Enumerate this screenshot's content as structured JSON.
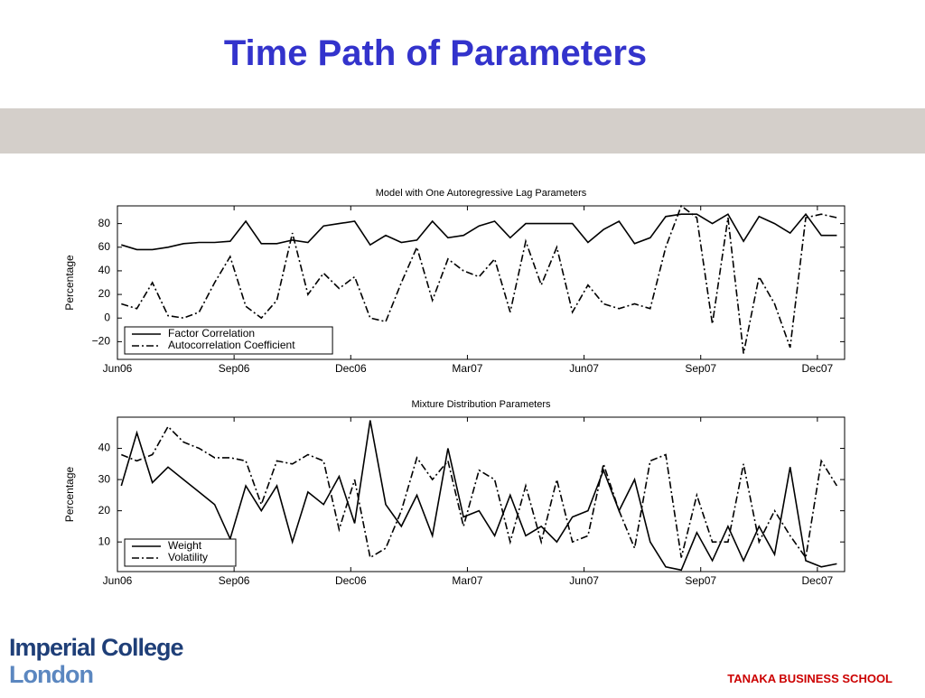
{
  "slide": {
    "title": "Time Path of Parameters",
    "logo_line1": "Imperial College",
    "logo_line2": "London",
    "footer": "TANAKA BUSINESS SCHOOL"
  },
  "chart_data": [
    {
      "type": "line",
      "title": "Model with One Autoregressive Lag Parameters",
      "y_label": "Percentage",
      "x": [
        0.1,
        0.5,
        0.9,
        1.3,
        1.7,
        2.1,
        2.5,
        2.9,
        3.3,
        3.7,
        4.1,
        4.5,
        4.9,
        5.3,
        5.7,
        6.1,
        6.5,
        6.9,
        7.3,
        7.7,
        8.1,
        8.5,
        8.9,
        9.3,
        9.7,
        10.1,
        10.5,
        10.9,
        11.3,
        11.7,
        12.1,
        12.5,
        12.9,
        13.3,
        13.7,
        14.1,
        14.5,
        14.9,
        15.3,
        15.7,
        16.1,
        16.5,
        16.9,
        17.3,
        17.7,
        18.1,
        18.5
      ],
      "series": [
        {
          "name": "Factor Correlation",
          "color": "#000000",
          "dash": "solid",
          "values": [
            62,
            58,
            58,
            60,
            63,
            64,
            64,
            65,
            82,
            63,
            63,
            66,
            64,
            78,
            80,
            82,
            62,
            70,
            64,
            66,
            82,
            68,
            70,
            78,
            82,
            68,
            80,
            80,
            80,
            80,
            64,
            75,
            82,
            63,
            68,
            86,
            88,
            88,
            80,
            88,
            65,
            86,
            80,
            72,
            88,
            70,
            70
          ]
        },
        {
          "name": "Autocorrelation Coefficient",
          "color": "#000000",
          "dash": "dashdot",
          "values": [
            12,
            8,
            30,
            2,
            0,
            5,
            30,
            52,
            10,
            0,
            15,
            72,
            20,
            38,
            25,
            35,
            0,
            -3,
            30,
            60,
            15,
            50,
            40,
            35,
            50,
            5,
            65,
            28,
            60,
            5,
            28,
            12,
            8,
            12,
            8,
            60,
            95,
            85,
            -5,
            85,
            -30,
            35,
            12,
            -25,
            85,
            88,
            85
          ]
        }
      ],
      "xlim": [
        0,
        18.7
      ],
      "ylim": [
        -35,
        95
      ],
      "xticks": [
        {
          "value": 0,
          "label": "Jun06"
        },
        {
          "value": 3,
          "label": "Sep06"
        },
        {
          "value": 6,
          "label": "Dec06"
        },
        {
          "value": 9,
          "label": "Mar07"
        },
        {
          "value": 12,
          "label": "Jun07"
        },
        {
          "value": 15,
          "label": "Sep07"
        },
        {
          "value": 18,
          "label": "Dec07"
        }
      ],
      "yticks": [
        {
          "value": -20,
          "label": "−20"
        },
        0,
        20,
        40,
        60,
        80
      ],
      "legend": "lower left"
    },
    {
      "type": "line",
      "title": "Mixture Distribution Parameters",
      "y_label": "Percentage",
      "x": [
        0.1,
        0.5,
        0.9,
        1.3,
        1.7,
        2.1,
        2.5,
        2.9,
        3.3,
        3.7,
        4.1,
        4.5,
        4.9,
        5.3,
        5.7,
        6.1,
        6.5,
        6.9,
        7.3,
        7.7,
        8.1,
        8.5,
        8.9,
        9.3,
        9.7,
        10.1,
        10.5,
        10.9,
        11.3,
        11.7,
        12.1,
        12.5,
        12.9,
        13.3,
        13.7,
        14.1,
        14.5,
        14.9,
        15.3,
        15.7,
        16.1,
        16.5,
        16.9,
        17.3,
        17.7,
        18.1,
        18.5
      ],
      "series": [
        {
          "name": "Weight",
          "color": "#000000",
          "dash": "solid",
          "values": [
            28,
            45,
            29,
            34,
            30,
            26,
            22,
            11,
            28,
            20,
            28,
            10,
            26,
            22,
            31,
            16,
            49,
            22,
            15,
            25,
            12,
            40,
            18,
            20,
            12,
            25,
            12,
            15,
            10,
            18,
            20,
            33,
            20,
            30,
            10,
            2,
            1,
            13,
            4,
            15,
            4,
            15,
            6,
            34,
            4,
            2,
            3
          ]
        },
        {
          "name": "Volatility",
          "color": "#000000",
          "dash": "dashdot",
          "values": [
            38,
            36,
            38,
            47,
            42,
            40,
            37,
            37,
            36,
            22,
            36,
            35,
            38,
            36,
            14,
            30,
            5,
            8,
            20,
            37,
            30,
            36,
            15,
            33,
            30,
            10,
            28,
            10,
            30,
            10,
            12,
            35,
            20,
            8,
            36,
            38,
            5,
            25,
            10,
            10,
            35,
            10,
            20,
            12,
            5,
            36,
            28
          ]
        }
      ],
      "xlim": [
        0,
        18.7
      ],
      "ylim": [
        0.5,
        50
      ],
      "xticks": [
        {
          "value": 0,
          "label": "Jun06"
        },
        {
          "value": 3,
          "label": "Sep06"
        },
        {
          "value": 6,
          "label": "Dec06"
        },
        {
          "value": 9,
          "label": "Mar07"
        },
        {
          "value": 12,
          "label": "Jun07"
        },
        {
          "value": 15,
          "label": "Sep07"
        },
        {
          "value": 18,
          "label": "Dec07"
        }
      ],
      "yticks": [
        10,
        20,
        30,
        40
      ],
      "legend": "lower left"
    }
  ]
}
